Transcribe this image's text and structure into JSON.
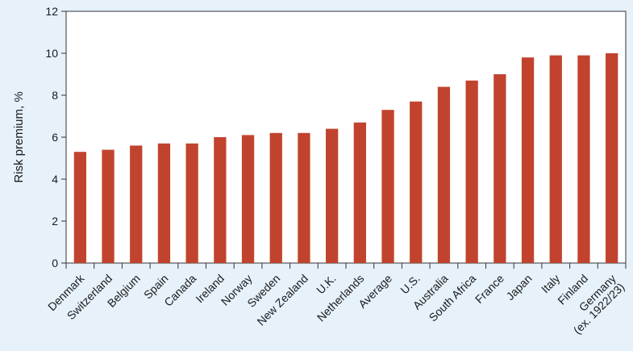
{
  "chart_data": {
    "type": "bar",
    "title": "",
    "xlabel": "",
    "ylabel": "Risk premium, %",
    "ylim": [
      0,
      12
    ],
    "yticks": [
      0,
      2,
      4,
      6,
      8,
      10,
      12
    ],
    "grid": false,
    "bar_color": "#c1432e",
    "categories": [
      "Denmark",
      "Switzerland",
      "Belgium",
      "Spain",
      "Canada",
      "Ireland",
      "Norway",
      "Sweden",
      "New Zealand",
      "U.K.",
      "Netherlands",
      "Average",
      "U.S.",
      "Australia",
      "South Africa",
      "France",
      "Japan",
      "Italy",
      "Finland",
      "Germany\n(ex. 1922/23)"
    ],
    "values": [
      5.3,
      5.4,
      5.6,
      5.7,
      5.7,
      6.0,
      6.1,
      6.2,
      6.2,
      6.4,
      6.7,
      7.3,
      7.7,
      8.4,
      8.7,
      9.0,
      9.8,
      9.9,
      9.9,
      10.0
    ]
  }
}
